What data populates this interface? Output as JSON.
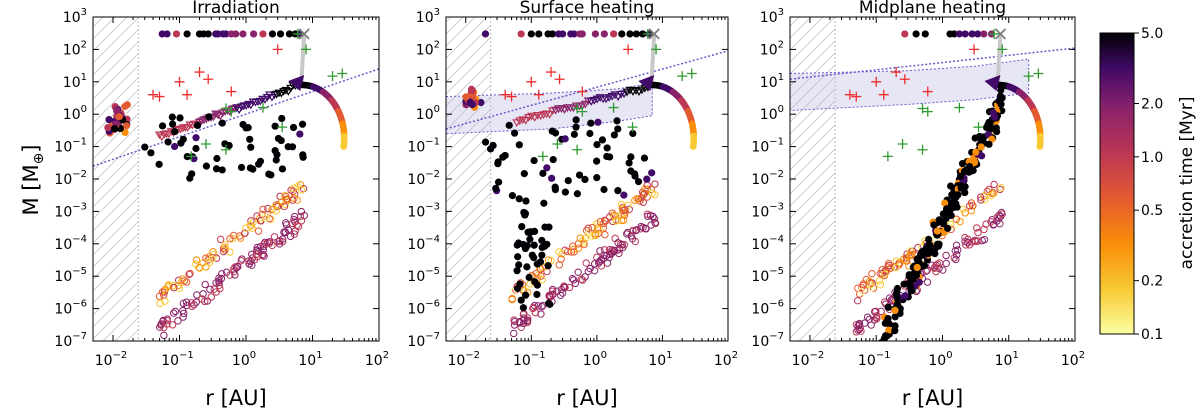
{
  "figure": {
    "ylabel": "M [M",
    "ylabel_sub": "⊕",
    "ylabel_end": "]",
    "xlabel": "r [AU]"
  },
  "colorbar": {
    "label": "accretion time [Myr]",
    "scale": "log",
    "range": [
      0.1,
      5.0
    ],
    "ticks": [
      "0.1",
      "0.2",
      "0.5",
      "1.0",
      "2.0",
      "5.0"
    ],
    "colormap": "inferno_r"
  },
  "colors": {
    "observed_hot": "#ef2d2d",
    "observed_cool": "#2f9a2f",
    "shaded_region": "#b8b6e0",
    "boundary_line": "#6a5acd",
    "hatch": "#c8c8c8",
    "end_marker": "#808080"
  },
  "x_ticks": [
    {
      "base": "10",
      "exp": "−2"
    },
    {
      "base": "10",
      "exp": "−1"
    },
    {
      "base": "10",
      "exp": "0"
    },
    {
      "base": "10",
      "exp": "1"
    },
    {
      "base": "10",
      "exp": "2"
    }
  ],
  "y_ticks": [
    {
      "base": "10",
      "exp": "−7"
    },
    {
      "base": "10",
      "exp": "−6"
    },
    {
      "base": "10",
      "exp": "−5"
    },
    {
      "base": "10",
      "exp": "−4"
    },
    {
      "base": "10",
      "exp": "−3"
    },
    {
      "base": "10",
      "exp": "−2"
    },
    {
      "base": "10",
      "exp": "−1"
    },
    {
      "base": "10",
      "exp": "0"
    },
    {
      "base": "10",
      "exp": "1"
    },
    {
      "base": "10",
      "exp": "2"
    },
    {
      "base": "10",
      "exp": "3"
    }
  ],
  "chart_data": [
    {
      "type": "scatter",
      "title": "Irradiation",
      "xscale": "log",
      "yscale": "log",
      "xlim": [
        0.005,
        100
      ],
      "ylim": [
        1e-07,
        1000
      ],
      "inner_edge_r": 0.024,
      "boundary_line": {
        "x": [
          0.005,
          100
        ],
        "y": [
          0.025,
          25
        ]
      },
      "shaded_band": null,
      "series": [
        {
          "kind": "iso_ring",
          "r0": 0.012,
          "m0": 0.6,
          "n": 36,
          "spread_r": 0.3,
          "spread_m": 0.35
        },
        {
          "kind": "iso_line",
          "r0": 0.05,
          "r1": 6,
          "m0": 0.2,
          "slope": 1.0,
          "n": 60,
          "marker": "triangle"
        },
        {
          "kind": "giants",
          "m": 300,
          "r": [
            0.09,
            0.13,
            0.2,
            0.23,
            0.27,
            0.35,
            0.38,
            0.45,
            0.5,
            0.6,
            0.7,
            0.9,
            1.3,
            1.8,
            2.5,
            3.3,
            4.5,
            5.5,
            6.5,
            0.055,
            0.065
          ]
        },
        {
          "kind": "cloud",
          "r_min": 0.03,
          "r_max": 8,
          "m_min": 0.01,
          "m_max": 1.0,
          "n": 55,
          "color": "black"
        },
        {
          "kind": "open_bands",
          "n": 210
        }
      ],
      "track": {
        "r_start": 7,
        "m_start": 8,
        "r_end": 30,
        "m_end": 0.1,
        "arrow": true
      }
    },
    {
      "type": "scatter",
      "title": "Surface heating",
      "xscale": "log",
      "yscale": "log",
      "xlim": [
        0.005,
        100
      ],
      "ylim": [
        1e-07,
        1000
      ],
      "inner_edge_r": 0.024,
      "boundary_line": {
        "x": [
          0.005,
          100
        ],
        "y": [
          0.35,
          90
        ]
      },
      "shaded_band": {
        "x": [
          0.005,
          0.2,
          2,
          7
        ],
        "y_low": [
          0.25,
          0.35,
          0.6,
          0.9
        ],
        "y_high": [
          3.5,
          4.5,
          6,
          9
        ]
      },
      "series": [
        {
          "kind": "iso_ring",
          "r0": 0.013,
          "m0": 2.5,
          "n": 18,
          "spread_r": 0.2,
          "spread_m": 0.4
        },
        {
          "kind": "iso_line",
          "r0": 0.06,
          "r1": 6,
          "m0": 0.6,
          "slope": 0.7,
          "n": 45,
          "marker": "triangle"
        },
        {
          "kind": "giants",
          "m": 300,
          "r": [
            0.07,
            0.1,
            0.13,
            0.18,
            0.21,
            0.26,
            0.3,
            0.4,
            0.45,
            0.55,
            0.6,
            0.95,
            1.3,
            1.8,
            2.4,
            3.2,
            4.0,
            5.0,
            6.3,
            0.02
          ]
        },
        {
          "kind": "cloud",
          "r_min": 0.02,
          "r_max": 8,
          "m_min": 0.003,
          "m_max": 1.0,
          "n": 60,
          "color": "black"
        },
        {
          "kind": "column",
          "r_min": 0.06,
          "r_max": 0.2,
          "m_min": 1e-06,
          "m_max": 0.003,
          "n": 45,
          "color": "black"
        },
        {
          "kind": "open_bands",
          "n": 210
        }
      ],
      "track": {
        "r_start": 7,
        "m_start": 8,
        "r_end": 30,
        "m_end": 0.1,
        "arrow": true
      }
    },
    {
      "type": "scatter",
      "title": "Midplane heating",
      "xscale": "log",
      "yscale": "log",
      "xlim": [
        0.005,
        100
      ],
      "ylim": [
        1e-07,
        1000
      ],
      "inner_edge_r": 0.024,
      "boundary_line": {
        "x": [
          0.005,
          100
        ],
        "y": [
          12,
          110
        ]
      },
      "shaded_band": {
        "x": [
          0.005,
          0.3,
          3,
          20
        ],
        "y_low": [
          1.3,
          2.0,
          2.8,
          4.5
        ],
        "y_high": [
          18,
          22,
          30,
          50
        ]
      },
      "series": [
        {
          "kind": "giants",
          "m": 300,
          "r": [
            0.27,
            0.4,
            0.55,
            1.3,
            1.5,
            1.8,
            2.2,
            2.8,
            3.4,
            4.2,
            5.5
          ]
        },
        {
          "kind": "cloud",
          "r_min": 0.12,
          "r_max": 8,
          "m_min": 1e-07,
          "m_max": 1.0,
          "n": 230,
          "color": "black",
          "diag": true
        },
        {
          "kind": "open_bands",
          "n": 190
        }
      ],
      "track": {
        "r_start": 7,
        "m_start": 8,
        "r_end": 30,
        "m_end": 0.1,
        "arrow": true
      }
    }
  ],
  "observed_hot": [
    [
      0.04,
      4
    ],
    [
      0.05,
      3.5
    ],
    [
      0.1,
      10
    ],
    [
      0.13,
      4
    ],
    [
      0.2,
      20
    ],
    [
      0.27,
      12
    ],
    [
      0.6,
      5
    ],
    [
      3,
      100
    ]
  ],
  "observed_cool": [
    [
      0.5,
      1.5
    ],
    [
      0.6,
      1.2
    ],
    [
      0.5,
      0.08
    ],
    [
      0.15,
      0.05
    ],
    [
      1.8,
      1.6
    ],
    [
      3.5,
      0.4
    ],
    [
      6,
      300
    ],
    [
      8,
      100
    ],
    [
      20,
      15
    ],
    [
      28,
      18
    ],
    [
      0.25,
      0.12
    ]
  ],
  "end_marker": [
    7.5,
    300
  ]
}
